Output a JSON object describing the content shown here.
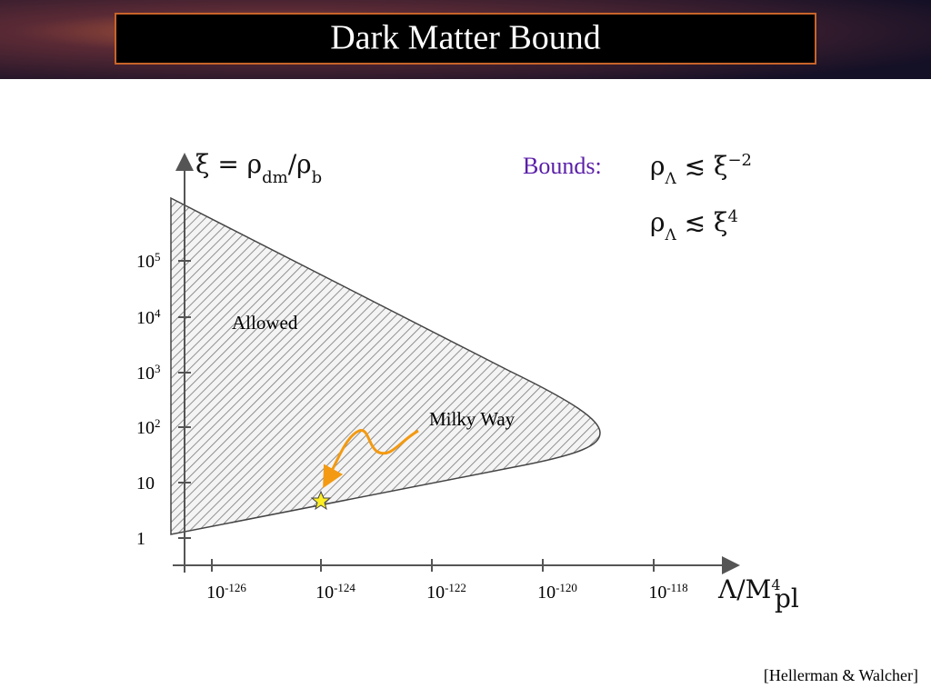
{
  "header": {
    "title": "Dark Matter Bound"
  },
  "figure": {
    "y_axis_label": {
      "main": "ξ = ρ",
      "sub1": "dm",
      "mid": "/ρ",
      "sub2": "b"
    },
    "x_axis_label": {
      "main": "Λ/M",
      "sup": "4",
      "sub": "pl"
    },
    "y_ticks": [
      {
        "base": "10",
        "exp": "5"
      },
      {
        "base": "10",
        "exp": "4"
      },
      {
        "base": "10",
        "exp": "3"
      },
      {
        "base": "10",
        "exp": "2"
      },
      {
        "base": "10"
      },
      {
        "base": "1"
      }
    ],
    "x_ticks": [
      {
        "base": "10",
        "exp": "-126"
      },
      {
        "base": "10",
        "exp": "-124"
      },
      {
        "base": "10",
        "exp": "-122"
      },
      {
        "base": "10",
        "exp": "-120"
      },
      {
        "base": "10",
        "exp": "-118"
      }
    ],
    "region_label": "Allowed",
    "annotation": "Milky Way",
    "bounds": {
      "label": "Bounds:",
      "lines": [
        {
          "main": "ρ",
          "sub": "Λ",
          "rel": " ≲ ξ",
          "sup": "−2"
        },
        {
          "main": "ρ",
          "sub": "Λ",
          "rel": " ≲ ξ",
          "sup": "4"
        }
      ]
    }
  },
  "footer": {
    "citation": "[Hellerman & Walcher]"
  }
}
